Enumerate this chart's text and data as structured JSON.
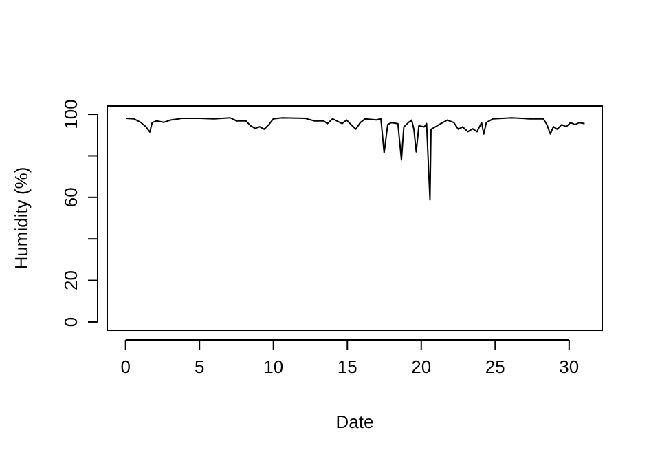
{
  "chart_data": {
    "type": "line",
    "xlabel": "Date",
    "ylabel": "Humidity (%)",
    "xlim": [
      -1.24,
      32.24
    ],
    "ylim": [
      -4,
      104
    ],
    "xticks": [
      0,
      5,
      10,
      15,
      20,
      25,
      30
    ],
    "yticks": [
      0,
      20,
      {
        "value": 40,
        "label": null
      },
      60,
      {
        "value": 80,
        "label": null
      },
      100
    ],
    "grid": false,
    "marker": "none",
    "line_style": "solid",
    "series": [
      {
        "color": "#000000",
        "x": [
          0.05,
          0.56,
          1.02,
          1.39,
          1.64,
          1.8,
          2.1,
          2.58,
          3.04,
          3.8,
          5.05,
          5.98,
          7.06,
          7.52,
          8.14,
          8.45,
          8.76,
          9.07,
          9.38,
          9.69,
          10.0,
          10.6,
          12.16,
          12.78,
          13.4,
          13.65,
          14.0,
          14.64,
          14.95,
          15.57,
          15.88,
          16.2,
          16.96,
          17.27,
          17.49,
          17.73,
          17.98,
          18.42,
          18.66,
          18.82,
          19.13,
          19.35,
          19.5,
          19.66,
          19.84,
          20.2,
          20.36,
          20.59,
          20.66,
          20.97,
          21.45,
          21.76,
          22.2,
          22.5,
          22.8,
          23.16,
          23.47,
          23.77,
          24.08,
          24.23,
          24.4,
          24.86,
          26.1,
          27.33,
          28.26,
          28.5,
          28.73,
          28.94,
          29.2,
          29.5,
          29.8,
          30.1,
          30.4,
          30.7,
          31.05
        ],
        "values": [
          98,
          97.8,
          96.1,
          93.9,
          91.4,
          96,
          96.8,
          96.1,
          97.2,
          98,
          98,
          97.8,
          98.3,
          96.8,
          96.8,
          94.5,
          93.2,
          94,
          92.8,
          95,
          97.8,
          98.3,
          98,
          96.8,
          96.8,
          95.5,
          97.8,
          95.5,
          97.2,
          92.8,
          96,
          97.8,
          97.3,
          97.8,
          81.4,
          95,
          96,
          95.5,
          78,
          93.9,
          96,
          97.2,
          92.8,
          81.9,
          94.5,
          93.9,
          95.5,
          58.8,
          92.8,
          94,
          96,
          97.2,
          96,
          92.8,
          93.9,
          91.6,
          93,
          91.6,
          96,
          90.5,
          96,
          97.8,
          98.3,
          97.8,
          97.8,
          95,
          90.5,
          94,
          92.8,
          95,
          94,
          96,
          95,
          96,
          95.5
        ]
      }
    ]
  }
}
